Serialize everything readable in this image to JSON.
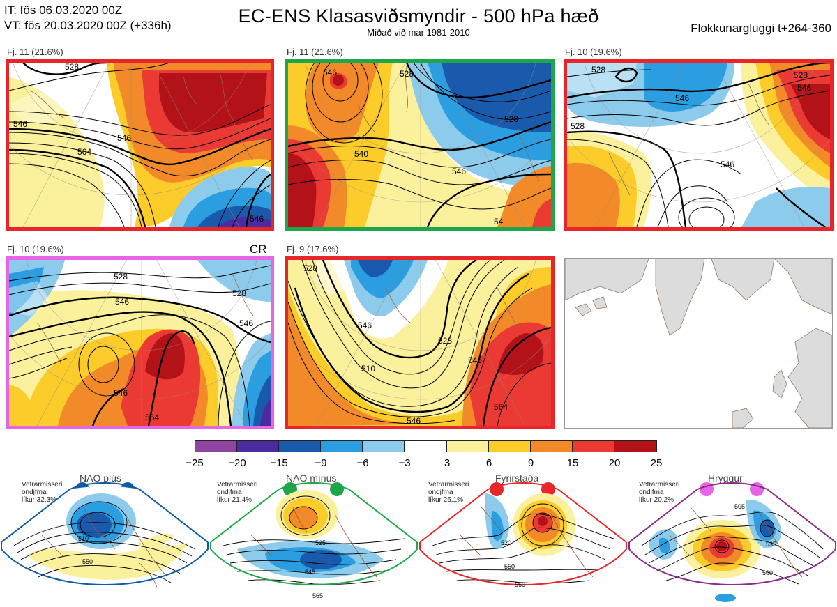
{
  "header": {
    "it_line": "IT: fös 06.03.2020 00Z",
    "vt_line": "VT: fös 20.03.2020 00Z  (+336h)",
    "title": "EC-ENS Klasasviðsmyndir - 500 hPa hæð",
    "subtitle": "Miðað við mar 1981-2010",
    "window": "Flokkunargluggi t+264-360"
  },
  "panels": [
    {
      "label": "Fj. 11 (21.6%)",
      "border": "#e8262a",
      "contours": [
        "528",
        "546",
        "564",
        "546",
        "546"
      ]
    },
    {
      "label": "Fj. 11 (21.6%)",
      "border": "#1ea64a",
      "contours": [
        "546",
        "528",
        "528",
        "540",
        "546",
        "54"
      ]
    },
    {
      "label": "Fj. 10 (19.6%)",
      "border": "#e8262a",
      "contours": [
        "528",
        "546",
        "528",
        "546",
        "546",
        "528"
      ]
    },
    {
      "label": "Fj. 10 (19.6%)",
      "border": "#e865e6",
      "extra": "CR",
      "contours": [
        "528",
        "546",
        "528",
        "546",
        "546",
        "564"
      ]
    },
    {
      "label": "Fj. 9 (17.6%)",
      "border": "#e8262a",
      "contours": [
        "528",
        "546",
        "510",
        "528",
        "546",
        "564",
        "546"
      ]
    }
  ],
  "colorbar": {
    "colors": [
      "#8e44a0",
      "#4b2ca0",
      "#1a5aac",
      "#2a9ee0",
      "#8ccbec",
      "#ffffff",
      "#fbf19c",
      "#fbcc2a",
      "#f38a2a",
      "#ea3a33",
      "#b31219"
    ],
    "ticks": [
      "−25",
      "−20",
      "−15",
      "−9",
      "−6",
      "−3",
      "3",
      "6",
      "9",
      "15",
      "20",
      "25"
    ]
  },
  "regimes": [
    {
      "name": "NAO plús",
      "color": "#0d5aa7",
      "note1": "Vetrarmisseri",
      "note2": "ondjfma",
      "note3": "líkur 32,3%",
      "labels": [
        "510",
        "550"
      ]
    },
    {
      "name": "NAO mínus",
      "color": "#1ea64a",
      "note1": "Vetrarmisseri",
      "note2": "ondjfma",
      "note3": "líkur 21,4%",
      "labels": [
        "525",
        "545",
        "565"
      ]
    },
    {
      "name": "Fyrirstaða",
      "color": "#e8262a",
      "note1": "Vetrarmisseri",
      "note2": "ondjfma",
      "note3": "líkur 26,1%",
      "labels": [
        "520",
        "550",
        "560"
      ]
    },
    {
      "name": "Hryggur",
      "color": "#e865e6",
      "note1": "Vetrarmisseri",
      "note2": "ondjfma",
      "note3": "líkur 20,2%",
      "labels": [
        "505",
        "535",
        "560"
      ]
    }
  ]
}
